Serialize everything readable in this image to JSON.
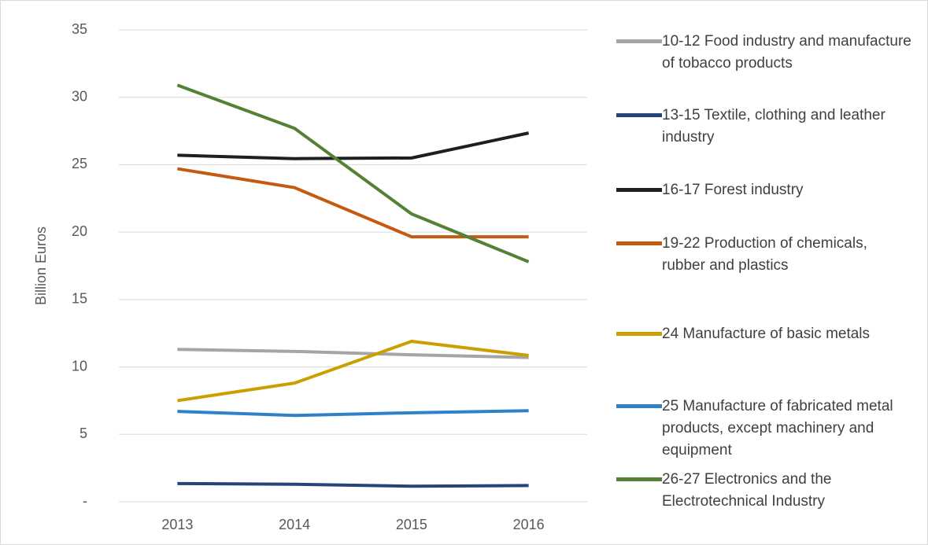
{
  "chart_data": {
    "type": "line",
    "y_label": "Billion Euros",
    "categories": [
      "2013",
      "2014",
      "2015",
      "2016"
    ],
    "series": [
      {
        "name": "10-12 Food industry and manufacture of tobacco products",
        "color": "#a5a5a5",
        "values": [
          11.3,
          11.15,
          10.9,
          10.7
        ]
      },
      {
        "name": "13-15 Textile, clothing and leather industry",
        "color": "#264478",
        "values": [
          1.35,
          1.3,
          1.15,
          1.2
        ]
      },
      {
        "name": "16-17 Forest industry",
        "color": "#1f1f1f",
        "values": [
          25.7,
          25.45,
          25.5,
          27.35
        ]
      },
      {
        "name": "19-22 Production of chemicals, rubber and plastics",
        "color": "#c55a11",
        "values": [
          24.7,
          23.3,
          19.65,
          19.65
        ]
      },
      {
        "name": "24 Manufacture of basic metals",
        "color": "#cc9e00",
        "values": [
          7.5,
          8.8,
          11.9,
          10.85
        ]
      },
      {
        "name": "25 Manufacture of fabricated metal products, except machinery and equipment",
        "color": "#2e80c8",
        "values": [
          6.7,
          6.4,
          6.6,
          6.75
        ]
      },
      {
        "name": "26-27 Electronics and the Electrotechnical Industry",
        "color": "#548235",
        "values": [
          30.9,
          27.7,
          21.35,
          17.8
        ]
      }
    ],
    "ylim": [
      0,
      35
    ],
    "yticks": [
      {
        "value": 0,
        "label": "-"
      },
      5,
      10,
      15,
      20,
      25,
      30,
      35
    ],
    "grid": true,
    "legend": "right"
  }
}
